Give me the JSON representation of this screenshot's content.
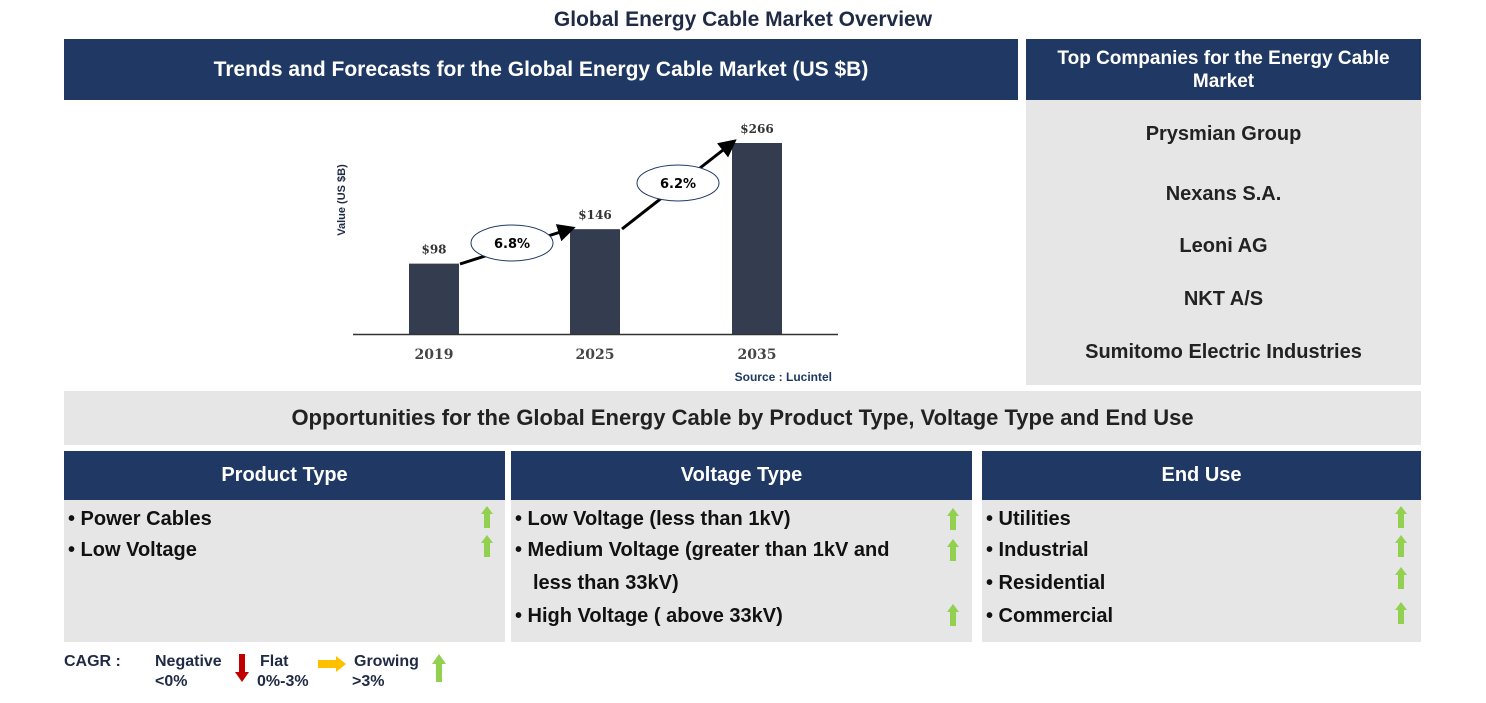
{
  "title": "Global Energy Cable Market Overview",
  "trends_header": "Trends and Forecasts for the Global Energy Cable Market (US $B)",
  "companies_header": "Top Companies for the Energy Cable Market",
  "companies": [
    "Prysmian Group",
    "Nexans S.A.",
    "Leoni AG",
    "NKT A/S",
    "Sumitomo Electric Industries"
  ],
  "opportunities_header": "Opportunities for the Global Energy Cable by Product Type, Voltage Type and End Use",
  "segments": [
    {
      "header": "Product Type",
      "items": [
        "• Power Cables",
        "• Low Voltage"
      ]
    },
    {
      "header": "Voltage Type",
      "items": [
        "• Low Voltage (less than 1kV)",
        "• Medium Voltage (greater than 1kV and",
        "less than 33kV)",
        "• High Voltage ( above 33kV)"
      ]
    },
    {
      "header": "End Use",
      "items": [
        "• Utilities",
        "• Industrial",
        "• Residential",
        "• Commercial"
      ]
    }
  ],
  "legend": {
    "cagr": "CAGR  :",
    "negative": "Negative",
    "negative_range": "<0%",
    "flat": "Flat",
    "flat_range": "0%-3%",
    "growing": "Growing",
    "growing_range": ">3%"
  },
  "colors": {
    "navy": "#1f3864",
    "bar": "#333d4f",
    "up": "#92d050",
    "down": "#c00000",
    "flat": "#ffc000"
  },
  "chart_data": {
    "type": "bar",
    "categories": [
      "2019",
      "2025",
      "2035"
    ],
    "values": [
      98,
      146,
      266
    ],
    "value_labels": [
      "$98",
      "$146",
      "$266"
    ],
    "cagr_labels": [
      "6.8%",
      "6.2%"
    ],
    "ylabel": "Value (US $B)",
    "source": "Source : Lucintel",
    "ylim": [
      0,
      266
    ]
  }
}
